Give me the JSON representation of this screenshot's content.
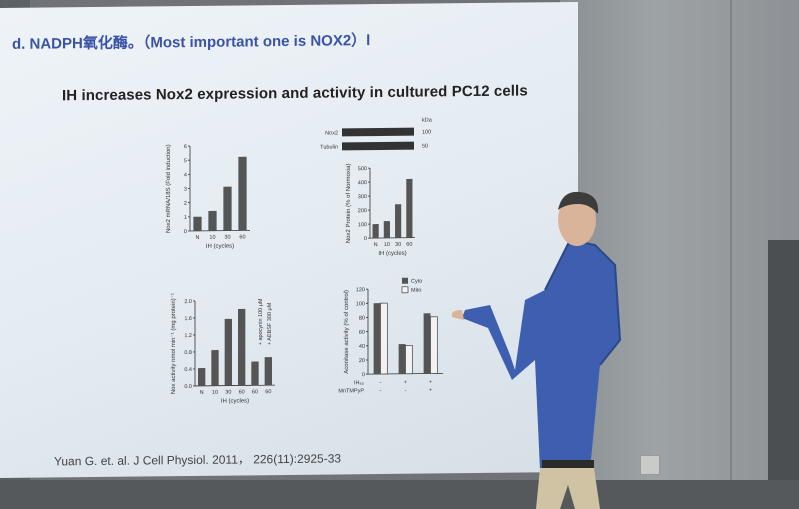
{
  "slide": {
    "heading": "d. NADPH氧化酶。（Most important  one is NOX2）l",
    "title": "IH increases Nox2 expression and activity in cultured PC12 cells",
    "citation": "Yuan G. et. al. J Cell Physiol. 2011，  226(11):2925-33"
  },
  "chart_data": [
    {
      "type": "bar",
      "ylabel": "Nox2 mRNA/18S (Fold induction)",
      "xlabel": "IH (cycles)",
      "categories": [
        "N",
        "10",
        "30",
        "60"
      ],
      "values": [
        1.0,
        1.4,
        3.1,
        5.2
      ],
      "ylim": [
        0,
        6
      ],
      "yticks": [
        "0",
        "1",
        "2",
        "3",
        "4",
        "5",
        "6"
      ]
    },
    {
      "type": "bar",
      "ylabel": "Nox2 Protein (% of Normoxia)",
      "xlabel": "IH (cycles)",
      "categories": [
        "N",
        "10",
        "30",
        "60"
      ],
      "values": [
        100,
        120,
        240,
        420
      ],
      "ylim": [
        0,
        500
      ],
      "yticks": [
        "0",
        "100",
        "200",
        "300",
        "400",
        "500"
      ],
      "blot": {
        "kda": "kDa",
        "rows": [
          {
            "name": "Nox2",
            "kda": "100"
          },
          {
            "name": "Tubulin",
            "kda": "50"
          }
        ]
      }
    },
    {
      "type": "bar",
      "ylabel": "Nox activity nmol min⁻¹ (mg protein)⁻¹",
      "xlabel": "IH (cycles)",
      "categories": [
        "N",
        "10",
        "30",
        "60",
        "60",
        "60"
      ],
      "values": [
        0.42,
        0.84,
        1.57,
        1.8,
        0.56,
        0.66
      ],
      "ylim": [
        0,
        2.0
      ],
      "yticks": [
        "0.0",
        "0.4",
        "0.8",
        "1.2",
        "1.6",
        "2.0"
      ],
      "annotations": [
        "+ apocynin 100 μM",
        "+ AEBSF 300 μM"
      ]
    },
    {
      "type": "bar",
      "ylabel": "Aconitase activity (% of control)",
      "categories": [
        "1",
        "2",
        "3"
      ],
      "series": [
        {
          "name": "Cyto",
          "values": [
            100,
            42,
            85
          ]
        },
        {
          "name": "Mito",
          "values": [
            100,
            40,
            80
          ]
        }
      ],
      "ylim": [
        0,
        120
      ],
      "yticks": [
        "0",
        "20",
        "40",
        "60",
        "80",
        "100",
        "120"
      ],
      "row_labels": [
        "IH₆₀",
        "MnTMPyP"
      ],
      "row_values": [
        [
          "-",
          "+",
          "+"
        ],
        [
          "-",
          "-",
          "+"
        ]
      ]
    }
  ]
}
